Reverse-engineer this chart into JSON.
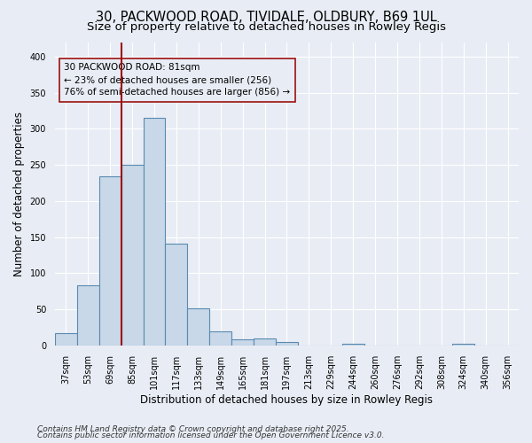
{
  "title_line1": "30, PACKWOOD ROAD, TIVIDALE, OLDBURY, B69 1UL",
  "title_line2": "Size of property relative to detached houses in Rowley Regis",
  "xlabel": "Distribution of detached houses by size in Rowley Regis",
  "ylabel": "Number of detached properties",
  "categories": [
    "37sqm",
    "53sqm",
    "69sqm",
    "85sqm",
    "101sqm",
    "117sqm",
    "133sqm",
    "149sqm",
    "165sqm",
    "181sqm",
    "197sqm",
    "213sqm",
    "229sqm",
    "244sqm",
    "260sqm",
    "276sqm",
    "292sqm",
    "308sqm",
    "324sqm",
    "340sqm",
    "356sqm"
  ],
  "values": [
    17,
    83,
    234,
    250,
    315,
    141,
    51,
    19,
    9,
    10,
    5,
    0,
    0,
    2,
    0,
    0,
    0,
    0,
    2,
    0,
    0
  ],
  "bar_color": "#c8d8e8",
  "bar_edge_color": "#5a8ab0",
  "bar_edge_width": 0.8,
  "annotation_line1": "30 PACKWOOD ROAD: 81sqm",
  "annotation_line2": "← 23% of detached houses are smaller (256)",
  "annotation_line3": "76% of semi-detached houses are larger (856) →",
  "vline_color": "#9b1111",
  "annotation_box_edge_color": "#9b1111",
  "ylim": [
    0,
    420
  ],
  "yticks": [
    0,
    50,
    100,
    150,
    200,
    250,
    300,
    350,
    400
  ],
  "background_color": "#e8edf5",
  "grid_color": "#ffffff",
  "footer_line1": "Contains HM Land Registry data © Crown copyright and database right 2025.",
  "footer_line2": "Contains public sector information licensed under the Open Government Licence v3.0.",
  "title_fontsize": 10.5,
  "subtitle_fontsize": 9.5,
  "axis_label_fontsize": 8.5,
  "tick_fontsize": 7,
  "annotation_fontsize": 7.5,
  "footer_fontsize": 6.5,
  "vline_x": 2.5
}
